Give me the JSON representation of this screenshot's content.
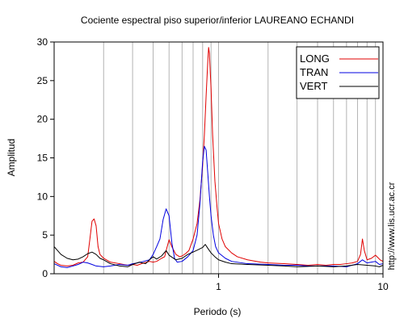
{
  "chart_data": {
    "type": "line",
    "title": "Cociente espectral piso superior/inferior LAUREANO ECHANDI",
    "xlabel": "Periodo (s)",
    "ylabel": "Amplitud",
    "x_scale": "log",
    "xlim": [
      0.1,
      10
    ],
    "ylim": [
      0,
      30
    ],
    "x_ticks": [
      {
        "value": 1,
        "label": "1"
      },
      {
        "value": 10,
        "label": "10"
      }
    ],
    "y_ticks": [
      0,
      5,
      10,
      15,
      20,
      25,
      30
    ],
    "grid": {
      "vertical_minor": true,
      "horizontal": false
    },
    "legend_position": "top-right",
    "credit": "http://www.lis.ucr.ac.cr",
    "series": [
      {
        "name": "LONG",
        "color": "#e00000",
        "points": [
          [
            0.1,
            1.6
          ],
          [
            0.105,
            1.3
          ],
          [
            0.11,
            1.1
          ],
          [
            0.12,
            1.0
          ],
          [
            0.13,
            1.1
          ],
          [
            0.14,
            1.4
          ],
          [
            0.15,
            1.5
          ],
          [
            0.16,
            2.2
          ],
          [
            0.165,
            4.5
          ],
          [
            0.17,
            6.8
          ],
          [
            0.175,
            7.1
          ],
          [
            0.18,
            6.2
          ],
          [
            0.185,
            3.5
          ],
          [
            0.19,
            2.5
          ],
          [
            0.2,
            2.0
          ],
          [
            0.22,
            1.5
          ],
          [
            0.25,
            1.3
          ],
          [
            0.28,
            1.1
          ],
          [
            0.3,
            1.2
          ],
          [
            0.32,
            1.1
          ],
          [
            0.35,
            1.4
          ],
          [
            0.38,
            1.6
          ],
          [
            0.4,
            1.5
          ],
          [
            0.42,
            1.6
          ],
          [
            0.45,
            2.0
          ],
          [
            0.47,
            2.2
          ],
          [
            0.48,
            3.0
          ],
          [
            0.5,
            4.4
          ],
          [
            0.52,
            3.5
          ],
          [
            0.55,
            2.5
          ],
          [
            0.58,
            2.2
          ],
          [
            0.6,
            2.3
          ],
          [
            0.63,
            2.6
          ],
          [
            0.66,
            3.0
          ],
          [
            0.7,
            4.5
          ],
          [
            0.74,
            6.5
          ],
          [
            0.77,
            9.5
          ],
          [
            0.8,
            14.0
          ],
          [
            0.82,
            18.0
          ],
          [
            0.84,
            23.0
          ],
          [
            0.86,
            27.5
          ],
          [
            0.87,
            29.3
          ],
          [
            0.88,
            28.5
          ],
          [
            0.9,
            24.0
          ],
          [
            0.92,
            18.0
          ],
          [
            0.95,
            12.0
          ],
          [
            0.98,
            8.5
          ],
          [
            1.0,
            6.5
          ],
          [
            1.05,
            4.5
          ],
          [
            1.1,
            3.5
          ],
          [
            1.2,
            2.7
          ],
          [
            1.3,
            2.2
          ],
          [
            1.5,
            1.8
          ],
          [
            1.8,
            1.5
          ],
          [
            2.0,
            1.4
          ],
          [
            2.5,
            1.3
          ],
          [
            3.0,
            1.2
          ],
          [
            3.5,
            1.1
          ],
          [
            4.0,
            1.2
          ],
          [
            4.5,
            1.1
          ],
          [
            5.0,
            1.2
          ],
          [
            5.5,
            1.2
          ],
          [
            6.0,
            1.3
          ],
          [
            6.5,
            1.4
          ],
          [
            7.0,
            1.6
          ],
          [
            7.3,
            2.5
          ],
          [
            7.5,
            4.5
          ],
          [
            7.7,
            3.0
          ],
          [
            8.0,
            1.8
          ],
          [
            8.5,
            2.0
          ],
          [
            9.0,
            2.4
          ],
          [
            9.3,
            2.1
          ],
          [
            9.6,
            1.8
          ],
          [
            10.0,
            1.6
          ]
        ]
      },
      {
        "name": "TRAN",
        "color": "#0000e0",
        "points": [
          [
            0.1,
            1.3
          ],
          [
            0.11,
            0.9
          ],
          [
            0.12,
            0.8
          ],
          [
            0.13,
            1.0
          ],
          [
            0.14,
            1.2
          ],
          [
            0.15,
            1.5
          ],
          [
            0.16,
            1.4
          ],
          [
            0.17,
            1.2
          ],
          [
            0.18,
            1.0
          ],
          [
            0.2,
            0.9
          ],
          [
            0.22,
            1.0
          ],
          [
            0.25,
            1.2
          ],
          [
            0.28,
            1.1
          ],
          [
            0.3,
            1.3
          ],
          [
            0.32,
            1.4
          ],
          [
            0.35,
            1.6
          ],
          [
            0.38,
            1.8
          ],
          [
            0.4,
            2.5
          ],
          [
            0.42,
            3.5
          ],
          [
            0.44,
            4.5
          ],
          [
            0.46,
            7.0
          ],
          [
            0.48,
            8.4
          ],
          [
            0.5,
            7.5
          ],
          [
            0.52,
            4.0
          ],
          [
            0.54,
            2.0
          ],
          [
            0.56,
            1.5
          ],
          [
            0.6,
            1.6
          ],
          [
            0.65,
            2.2
          ],
          [
            0.7,
            3.0
          ],
          [
            0.74,
            5.0
          ],
          [
            0.77,
            9.0
          ],
          [
            0.8,
            14.5
          ],
          [
            0.82,
            16.5
          ],
          [
            0.84,
            16.0
          ],
          [
            0.86,
            13.0
          ],
          [
            0.88,
            10.0
          ],
          [
            0.9,
            7.5
          ],
          [
            0.93,
            5.0
          ],
          [
            0.96,
            3.5
          ],
          [
            1.0,
            2.7
          ],
          [
            1.1,
            2.0
          ],
          [
            1.2,
            1.6
          ],
          [
            1.5,
            1.3
          ],
          [
            2.0,
            1.2
          ],
          [
            2.5,
            1.1
          ],
          [
            3.0,
            1.1
          ],
          [
            3.5,
            1.0
          ],
          [
            4.0,
            1.0
          ],
          [
            5.0,
            1.0
          ],
          [
            6.0,
            0.9
          ],
          [
            7.0,
            1.3
          ],
          [
            7.5,
            1.8
          ],
          [
            8.0,
            1.4
          ],
          [
            8.5,
            1.5
          ],
          [
            9.0,
            1.6
          ],
          [
            9.5,
            1.2
          ],
          [
            10.0,
            1.3
          ]
        ]
      },
      {
        "name": "VERT",
        "color": "#000000",
        "points": [
          [
            0.1,
            3.5
          ],
          [
            0.105,
            3.0
          ],
          [
            0.11,
            2.5
          ],
          [
            0.12,
            2.0
          ],
          [
            0.13,
            1.8
          ],
          [
            0.14,
            1.9
          ],
          [
            0.15,
            2.2
          ],
          [
            0.16,
            2.6
          ],
          [
            0.17,
            2.8
          ],
          [
            0.18,
            2.5
          ],
          [
            0.19,
            2.0
          ],
          [
            0.2,
            1.8
          ],
          [
            0.22,
            1.3
          ],
          [
            0.25,
            1.0
          ],
          [
            0.28,
            0.9
          ],
          [
            0.3,
            1.2
          ],
          [
            0.33,
            1.5
          ],
          [
            0.36,
            1.3
          ],
          [
            0.38,
            1.8
          ],
          [
            0.4,
            2.2
          ],
          [
            0.42,
            1.9
          ],
          [
            0.45,
            2.3
          ],
          [
            0.48,
            3.0
          ],
          [
            0.5,
            2.4
          ],
          [
            0.55,
            1.8
          ],
          [
            0.6,
            2.0
          ],
          [
            0.65,
            2.5
          ],
          [
            0.7,
            2.8
          ],
          [
            0.75,
            3.1
          ],
          [
            0.8,
            3.4
          ],
          [
            0.83,
            3.8
          ],
          [
            0.86,
            3.3
          ],
          [
            0.9,
            2.7
          ],
          [
            0.95,
            2.2
          ],
          [
            1.0,
            1.8
          ],
          [
            1.1,
            1.5
          ],
          [
            1.2,
            1.3
          ],
          [
            1.5,
            1.2
          ],
          [
            2.0,
            1.1
          ],
          [
            2.5,
            1.0
          ],
          [
            3.0,
            0.9
          ],
          [
            4.0,
            1.0
          ],
          [
            5.0,
            0.9
          ],
          [
            6.0,
            1.0
          ],
          [
            7.0,
            1.2
          ],
          [
            8.0,
            1.1
          ],
          [
            9.0,
            1.0
          ],
          [
            9.5,
            0.9
          ],
          [
            10.0,
            1.1
          ]
        ]
      }
    ]
  }
}
